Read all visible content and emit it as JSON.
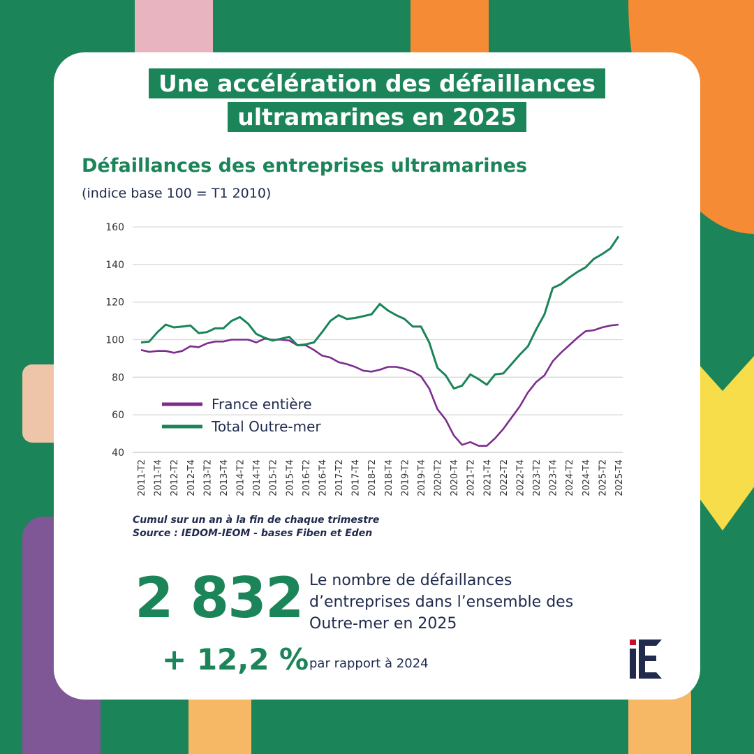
{
  "title": "Une accélération des défaillances ultramarines en 2025",
  "chart_title": "Défaillances des entreprises ultramarines",
  "chart_subtitle": "(indice base 100 = T1 2010)",
  "note_line1": "Cumul sur un an à la fin de chaque trimestre",
  "note_line2": "Source : IEDOM-IEOM - bases Fiben et Eden",
  "kpi_value": "2 832",
  "kpi_change": "+ 12,2 %",
  "kpi_description": "Le nombre de défaillances d’entreprises dans l’ensemble des Outre-mer en 2025",
  "kpi_comparison": "par rapport à 2024",
  "logo_text": "iE",
  "colors": {
    "green": "#1b8458",
    "purple": "#7b2d8e",
    "navy": "#1f2a4d",
    "red": "#c8102e"
  },
  "chart_data": {
    "type": "line",
    "title": "Défaillances des entreprises ultramarines",
    "subtitle": "(indice base 100 = T1 2010)",
    "ylim": [
      40,
      160
    ],
    "yticks": [
      40,
      60,
      80,
      100,
      120,
      140,
      160
    ],
    "grid": true,
    "legend": "bottom-left",
    "x_tick_labels": [
      "2011-T2",
      "2011-T4",
      "2012-T2",
      "2012-T4",
      "2013-T2",
      "2013-T4",
      "2014-T2",
      "2014-T4",
      "2015-T2",
      "2015-T4",
      "2016-T2",
      "2016-T4",
      "2017-T2",
      "2017-T4",
      "2018-T2",
      "2018-T4",
      "2019-T2",
      "2019-T4",
      "2020-T2",
      "2020-T4",
      "2021-T2",
      "2021-T4",
      "2022-T2",
      "2022-T4",
      "2023-T2",
      "2023-T4",
      "2024-T2",
      "2024-T4",
      "2025-T2",
      "2025-T4"
    ],
    "x_start": "2011-T2",
    "x_end": "2025-T4",
    "series": [
      {
        "name": "France entière",
        "color": "#7b2d8e",
        "values": [
          94.5,
          93.5,
          94,
          94,
          93,
          94,
          96.5,
          96,
          98,
          99,
          99,
          100,
          100,
          100,
          98.5,
          100.5,
          100,
          100,
          99.5,
          97,
          97,
          94.5,
          91.5,
          90.5,
          88,
          87,
          85.5,
          83.5,
          83,
          84,
          85.5,
          85.5,
          84.5,
          83,
          80.5,
          74,
          63,
          57.5,
          49,
          44,
          45.5,
          43.5,
          43.5,
          47.5,
          52.5,
          58.5,
          64.5,
          72,
          77.5,
          81,
          88.5,
          93,
          97,
          101,
          104.5,
          105,
          106.5,
          107.5,
          108
        ]
      },
      {
        "name": "Total Outre-mer",
        "color": "#1b8458",
        "values": [
          98.5,
          99,
          104,
          108,
          106.5,
          107,
          107.5,
          103.5,
          104,
          106,
          106,
          110,
          112,
          108.5,
          103,
          101,
          99.5,
          100.5,
          101.5,
          97,
          97.5,
          98.5,
          104,
          110,
          113,
          111,
          111.5,
          112.5,
          113.5,
          119,
          115.5,
          113,
          111,
          107,
          107,
          98.5,
          85,
          81,
          74,
          75.5,
          81.5,
          79,
          76,
          81.5,
          82,
          87,
          92,
          96.5,
          105.5,
          113.5,
          127.5,
          129.5,
          133,
          136,
          138.5,
          143,
          145.5,
          148.5,
          155
        ]
      }
    ]
  }
}
